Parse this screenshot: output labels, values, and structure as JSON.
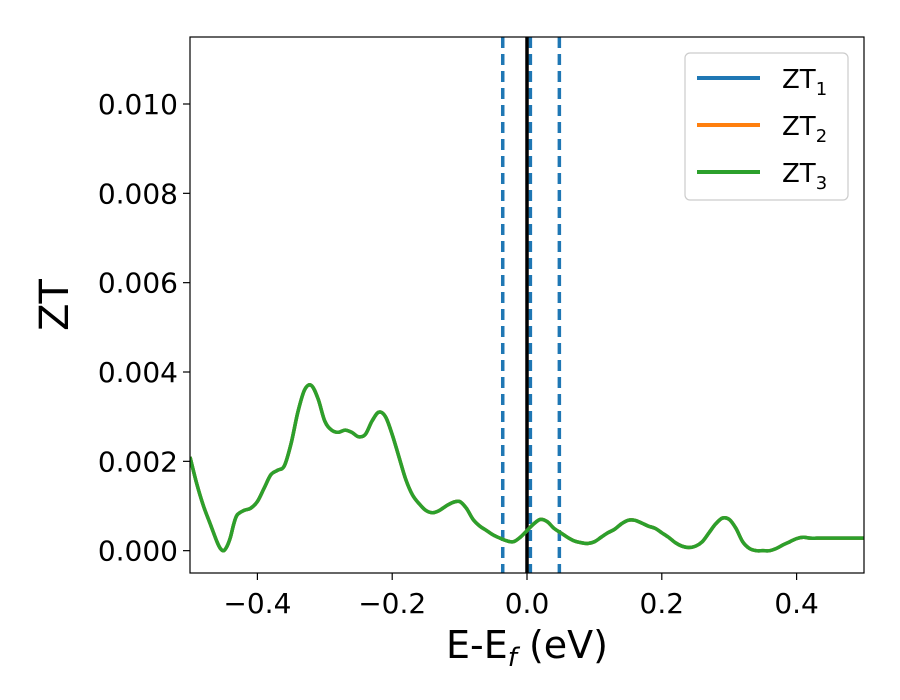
{
  "chart_data": {
    "type": "line",
    "title": "",
    "xlabel": {
      "main": "E-E",
      "sub": "f",
      "suffix": " (eV)"
    },
    "ylabel": "ZT",
    "xlim": [
      -0.5,
      0.5
    ],
    "ylim": [
      -0.0005,
      0.0115
    ],
    "xticks": [
      -0.4,
      -0.2,
      0.0,
      0.2,
      0.4
    ],
    "xtick_labels": [
      "−0.4",
      "−0.2",
      "0.0",
      "0.2",
      "0.4"
    ],
    "yticks": [
      0.0,
      0.002,
      0.004,
      0.006,
      0.008,
      0.01
    ],
    "ytick_labels": [
      "0.000",
      "0.002",
      "0.004",
      "0.006",
      "0.008",
      "0.010"
    ],
    "grid": false,
    "legend_position": "top-right",
    "colors": {
      "zt1": "#1f77b4",
      "zt2": "#ff7f0e",
      "zt3": "#2ca02c",
      "fermi": "#000000"
    },
    "vlines_dashed": [
      -0.036,
      0.005,
      0.048
    ],
    "vline_solid": 0.0,
    "series": [
      {
        "name": "ZT",
        "sub": "1",
        "color": "#1f77b4"
      },
      {
        "name": "ZT",
        "sub": "2",
        "color": "#ff7f0e"
      },
      {
        "name": "ZT",
        "sub": "3",
        "color": "#2ca02c"
      }
    ],
    "curve": {
      "x": [
        -0.5,
        -0.49,
        -0.48,
        -0.47,
        -0.46,
        -0.455,
        -0.45,
        -0.445,
        -0.44,
        -0.435,
        -0.43,
        -0.42,
        -0.41,
        -0.4,
        -0.39,
        -0.38,
        -0.37,
        -0.36,
        -0.35,
        -0.34,
        -0.33,
        -0.32,
        -0.31,
        -0.3,
        -0.29,
        -0.28,
        -0.27,
        -0.26,
        -0.25,
        -0.24,
        -0.23,
        -0.22,
        -0.21,
        -0.2,
        -0.19,
        -0.18,
        -0.17,
        -0.16,
        -0.15,
        -0.14,
        -0.13,
        -0.12,
        -0.11,
        -0.1,
        -0.09,
        -0.08,
        -0.07,
        -0.06,
        -0.05,
        -0.04,
        -0.03,
        -0.02,
        -0.01,
        0.0,
        0.01,
        0.02,
        0.03,
        0.04,
        0.05,
        0.06,
        0.07,
        0.08,
        0.09,
        0.1,
        0.11,
        0.12,
        0.13,
        0.14,
        0.15,
        0.16,
        0.17,
        0.18,
        0.19,
        0.2,
        0.21,
        0.22,
        0.23,
        0.24,
        0.25,
        0.26,
        0.27,
        0.28,
        0.29,
        0.3,
        0.31,
        0.32,
        0.33,
        0.34,
        0.35,
        0.36,
        0.37,
        0.38,
        0.39,
        0.4,
        0.41,
        0.42,
        0.43,
        0.44,
        0.45,
        0.46,
        0.47,
        0.48,
        0.49,
        0.5
      ],
      "y": [
        0.0021,
        0.0015,
        0.001,
        0.0006,
        0.0002,
        5e-05,
        0.0,
        0.0001,
        0.0003,
        0.0006,
        0.0008,
        0.0009,
        0.00095,
        0.0011,
        0.0014,
        0.0017,
        0.0018,
        0.0019,
        0.0024,
        0.0031,
        0.0036,
        0.0037,
        0.0034,
        0.0029,
        0.0027,
        0.00265,
        0.0027,
        0.00265,
        0.00255,
        0.0026,
        0.0029,
        0.0031,
        0.003,
        0.0026,
        0.0021,
        0.0016,
        0.00125,
        0.00105,
        0.0009,
        0.00085,
        0.0009,
        0.001,
        0.00108,
        0.0011,
        0.00095,
        0.0007,
        0.00055,
        0.00045,
        0.00035,
        0.00028,
        0.00022,
        0.0002,
        0.0003,
        0.00045,
        0.0006,
        0.0007,
        0.00065,
        0.0005,
        0.0004,
        0.0003,
        0.00022,
        0.00018,
        0.00016,
        0.0002,
        0.0003,
        0.0004,
        0.00048,
        0.0006,
        0.00068,
        0.00068,
        0.00062,
        0.00055,
        0.0005,
        0.0004,
        0.0003,
        0.00018,
        0.0001,
        7e-05,
        0.0001,
        0.0002,
        0.0004,
        0.0006,
        0.00073,
        0.0007,
        0.0005,
        0.0002,
        5e-05,
        0.0,
        0.0,
        0.0,
        5e-05,
        0.00013,
        0.0002,
        0.00027,
        0.0003,
        0.00028,
        0.00028,
        0.00028,
        0.00028,
        0.00028,
        0.00028,
        0.00028,
        0.00028,
        0.00028
      ]
    }
  }
}
